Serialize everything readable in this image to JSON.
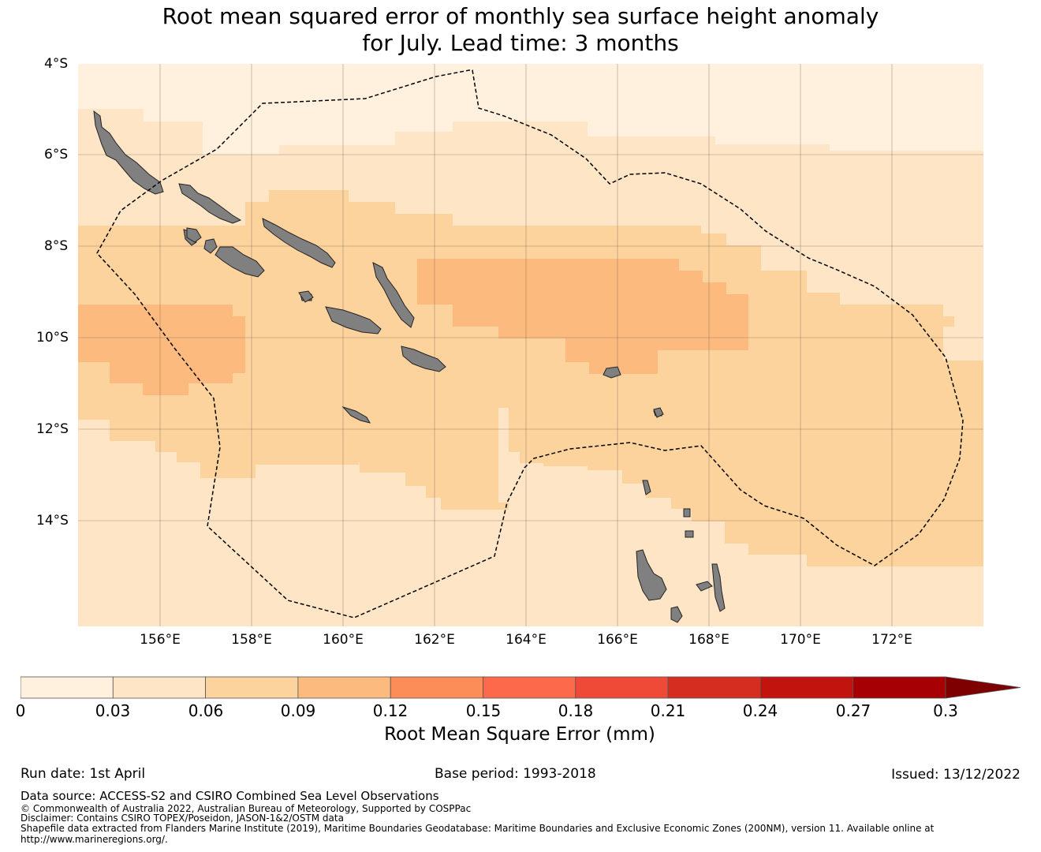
{
  "title": {
    "line1": "Root mean squared error of monthly sea surface height anomaly",
    "line2": "for July. Lead time: 3 months"
  },
  "map": {
    "lat_labels": [
      "4°S",
      "6°S",
      "8°S",
      "10°S",
      "12°S",
      "14°S"
    ],
    "lon_labels": [
      "156°E",
      "158°E",
      "160°E",
      "162°E",
      "164°E",
      "166°E",
      "168°E",
      "170°E",
      "172°E"
    ],
    "land_color": "#808080",
    "boundary_style": "dashed black"
  },
  "colorbar": {
    "ticks": [
      "0",
      "0.03",
      "0.06",
      "0.09",
      "0.12",
      "0.15",
      "0.18",
      "0.21",
      "0.24",
      "0.27",
      "0.3"
    ],
    "colors": [
      "#fff1dd",
      "#fee5c6",
      "#fdd39d",
      "#fdba7f",
      "#fc8d59",
      "#fc6a4b",
      "#ef4a37",
      "#d52e21",
      "#c3130e",
      "#a70004",
      "#7f0000"
    ],
    "extend": "max",
    "label": "Root Mean Square Error (mm)"
  },
  "footer": {
    "run_date": "Run date: 1st April",
    "base_period": "Base period: 1993-2018",
    "issued": "Issued: 13/12/2022",
    "data_source": "Data source: ACCESS-S2 and CSIRO Combined Sea Level Observations",
    "copyright": "© Commonwealth of Australia 2022, Australian Bureau of Meteorology, Supported by COSPPac",
    "disclaimer": "Disclaimer: Contains CSIRO TOPEX/Poseidon, JASON-1&2/OSTM data",
    "shapefile": "Shapefile data extracted from Flanders Marine Institute (2019), Maritime Boundaries Geodatabase: Maritime Boundaries and Exclusive Economic Zones (200NM), version 11. Available online at",
    "url": "http://www.marineregions.org/."
  }
}
